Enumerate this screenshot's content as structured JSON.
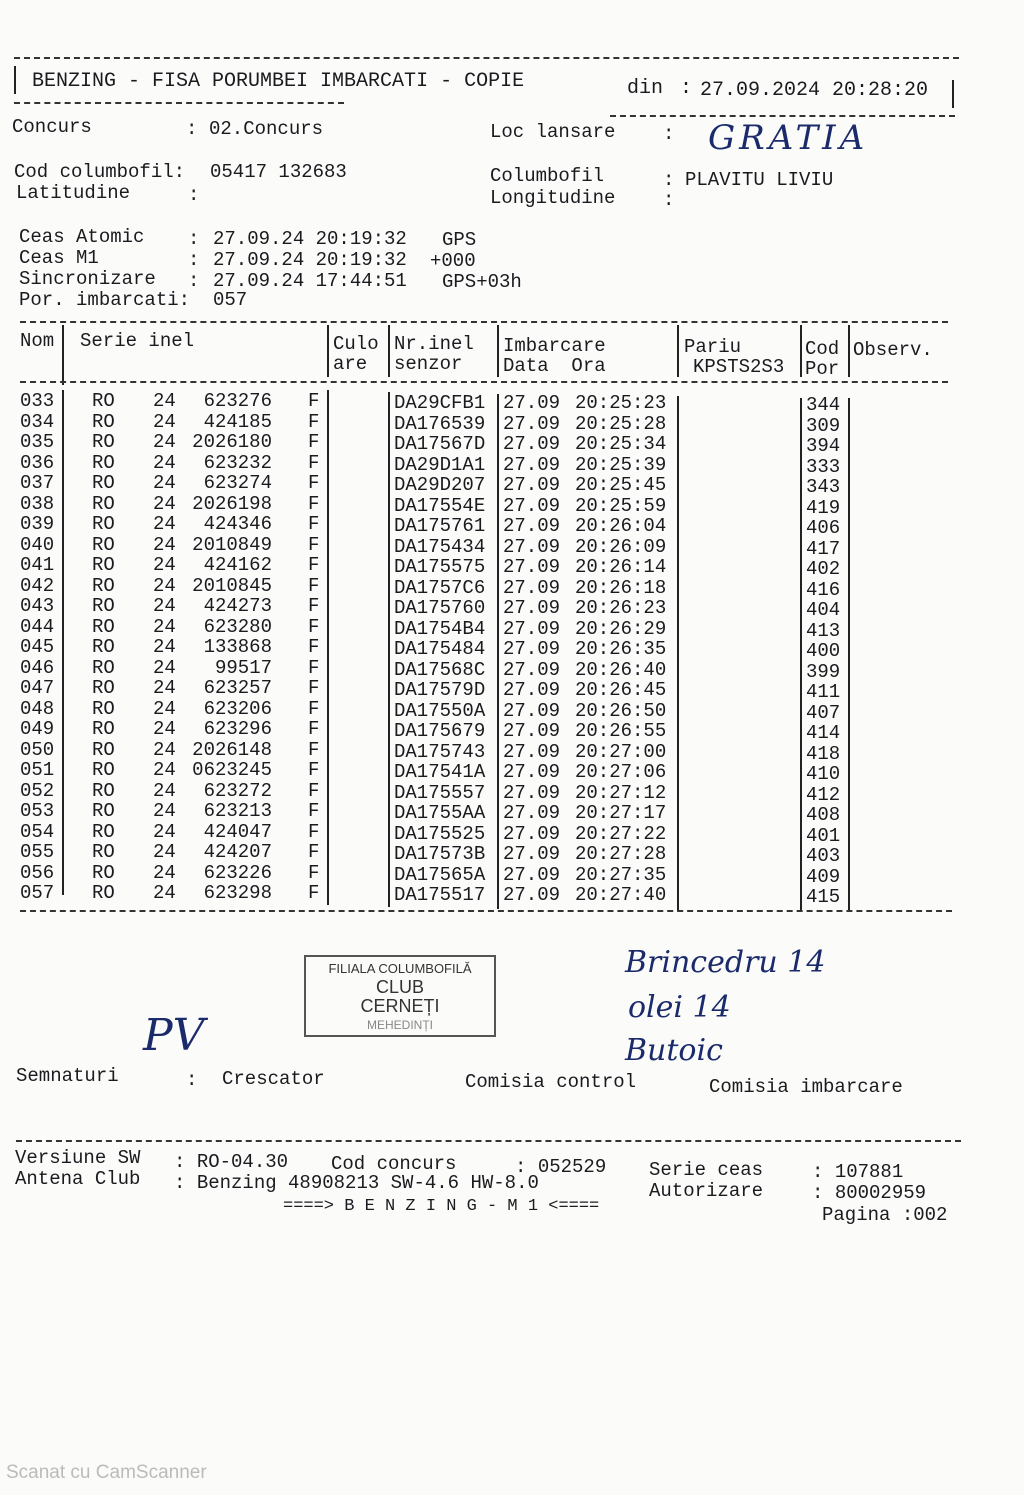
{
  "header": {
    "title": "BENZING - FISA PORUMBEI IMBARCATI - COPIE",
    "date_label": "din",
    "date_value": "27.09.2024 20:28:20"
  },
  "info": {
    "concurs_label": "Concurs",
    "concurs_value": "02.Concurs",
    "loc_lansare_label": "Loc lansare",
    "loc_lansare_value": "GRATIA",
    "cod_label": "Cod columbofil",
    "cod_value": "05417 132683",
    "columbofil_label": "Columbofil",
    "columbofil_value": "PLAVITU LIVIU",
    "latitudine_label": "Latitudine",
    "latitudine_value": "",
    "longitudine_label": "Longitudine",
    "longitudine_value": "",
    "ceas_atomic_label": "Ceas Atomic",
    "ceas_atomic_value": "27.09.24 20:19:32",
    "ceas_atomic_src": "GPS",
    "ceas_m1_label": "Ceas M1",
    "ceas_m1_value": "27.09.24 20:19:32",
    "ceas_m1_offset": "+000",
    "sync_label": "Sincronizare",
    "sync_value": "27.09.24 17:44:51",
    "sync_src": "GPS+03h",
    "por_label": "Por. imbarcati",
    "por_value": "057"
  },
  "table": {
    "headers": {
      "nom": "Nom",
      "serie": "Serie inel",
      "culo1": "Culo",
      "culo2": "are",
      "nr1": "Nr.inel",
      "nr2": "senzor",
      "imb1": "Imbarcare",
      "imb2": "Data  Ora",
      "pariu1": "Pariu",
      "pariu2": "KPSTS2S3",
      "cod1": "Cod",
      "cod2": "Por",
      "obs": "Observ."
    },
    "rows": [
      [
        "033",
        "RO",
        "24",
        "623276",
        "F",
        "DA29CFB1",
        "27.09",
        "20:25:23",
        "344"
      ],
      [
        "034",
        "RO",
        "24",
        "424185",
        "F",
        "DA176539",
        "27.09",
        "20:25:28",
        "309"
      ],
      [
        "035",
        "RO",
        "24",
        "2026180",
        "F",
        "DA17567D",
        "27.09",
        "20:25:34",
        "394"
      ],
      [
        "036",
        "RO",
        "24",
        "623232",
        "F",
        "DA29D1A1",
        "27.09",
        "20:25:39",
        "333"
      ],
      [
        "037",
        "RO",
        "24",
        "623274",
        "F",
        "DA29D207",
        "27.09",
        "20:25:45",
        "343"
      ],
      [
        "038",
        "RO",
        "24",
        "2026198",
        "F",
        "DA17554E",
        "27.09",
        "20:25:59",
        "419"
      ],
      [
        "039",
        "RO",
        "24",
        "424346",
        "F",
        "DA175761",
        "27.09",
        "20:26:04",
        "406"
      ],
      [
        "040",
        "RO",
        "24",
        "2010849",
        "F",
        "DA175434",
        "27.09",
        "20:26:09",
        "417"
      ],
      [
        "041",
        "RO",
        "24",
        "424162",
        "F",
        "DA175575",
        "27.09",
        "20:26:14",
        "402"
      ],
      [
        "042",
        "RO",
        "24",
        "2010845",
        "F",
        "DA1757C6",
        "27.09",
        "20:26:18",
        "416"
      ],
      [
        "043",
        "RO",
        "24",
        "424273",
        "F",
        "DA175760",
        "27.09",
        "20:26:23",
        "404"
      ],
      [
        "044",
        "RO",
        "24",
        "623280",
        "F",
        "DA1754B4",
        "27.09",
        "20:26:29",
        "413"
      ],
      [
        "045",
        "RO",
        "24",
        "133868",
        "F",
        "DA175484",
        "27.09",
        "20:26:35",
        "400"
      ],
      [
        "046",
        "RO",
        "24",
        "99517",
        "F",
        "DA17568C",
        "27.09",
        "20:26:40",
        "399"
      ],
      [
        "047",
        "RO",
        "24",
        "623257",
        "F",
        "DA17579D",
        "27.09",
        "20:26:45",
        "411"
      ],
      [
        "048",
        "RO",
        "24",
        "623206",
        "F",
        "DA17550A",
        "27.09",
        "20:26:50",
        "407"
      ],
      [
        "049",
        "RO",
        "24",
        "623296",
        "F",
        "DA175679",
        "27.09",
        "20:26:55",
        "414"
      ],
      [
        "050",
        "RO",
        "24",
        "2026148",
        "F",
        "DA175743",
        "27.09",
        "20:27:00",
        "418"
      ],
      [
        "051",
        "RO",
        "24",
        "0623245",
        "F",
        "DA17541A",
        "27.09",
        "20:27:06",
        "410"
      ],
      [
        "052",
        "RO",
        "24",
        "623272",
        "F",
        "DA175557",
        "27.09",
        "20:27:12",
        "412"
      ],
      [
        "053",
        "RO",
        "24",
        "623213",
        "F",
        "DA1755AA",
        "27.09",
        "20:27:17",
        "408"
      ],
      [
        "054",
        "RO",
        "24",
        "424047",
        "F",
        "DA175525",
        "27.09",
        "20:27:22",
        "401"
      ],
      [
        "055",
        "RO",
        "24",
        "424207",
        "F",
        "DA17573B",
        "27.09",
        "20:27:28",
        "403"
      ],
      [
        "056",
        "RO",
        "24",
        "623226",
        "F",
        "DA17565A",
        "27.09",
        "20:27:35",
        "409"
      ],
      [
        "057",
        "RO",
        "24",
        "623298",
        "F",
        "DA175517",
        "27.09",
        "20:27:40",
        "415"
      ]
    ]
  },
  "stamp": {
    "line1": "FILIALA COLUMBOFILĂ",
    "line2": "CLUB",
    "line3": "CERNEȚI",
    "line4": "MEHEDINȚI"
  },
  "signatures": {
    "label": "Semnaturi",
    "crescator": "Crescator",
    "comisia_control": "Comisia control",
    "comisia_imbarcare": "Comisia imbarcare",
    "hand_crescator": "PV",
    "hand1": "Brincedru 14",
    "hand2": "olei 14",
    "hand3": "Butoic"
  },
  "footer": {
    "versiune_label": "Versiune SW",
    "versiune_value": "RO-04.30",
    "cod_concurs_label": "Cod concurs",
    "cod_concurs_value": "052529",
    "serie_ceas_label": "Serie ceas",
    "serie_ceas_value": "107881",
    "antena_label": "Antena Club",
    "antena_value": "Benzing 48908213 SW-4.6 HW-8.0",
    "autorizare_label": "Autorizare",
    "autorizare_value": "80002959",
    "banner": "====> B E N Z I N G - M 1 <====",
    "pagina_label": "Pagina",
    "pagina_value": "002"
  },
  "watermark": "Scanat cu CamScanner"
}
